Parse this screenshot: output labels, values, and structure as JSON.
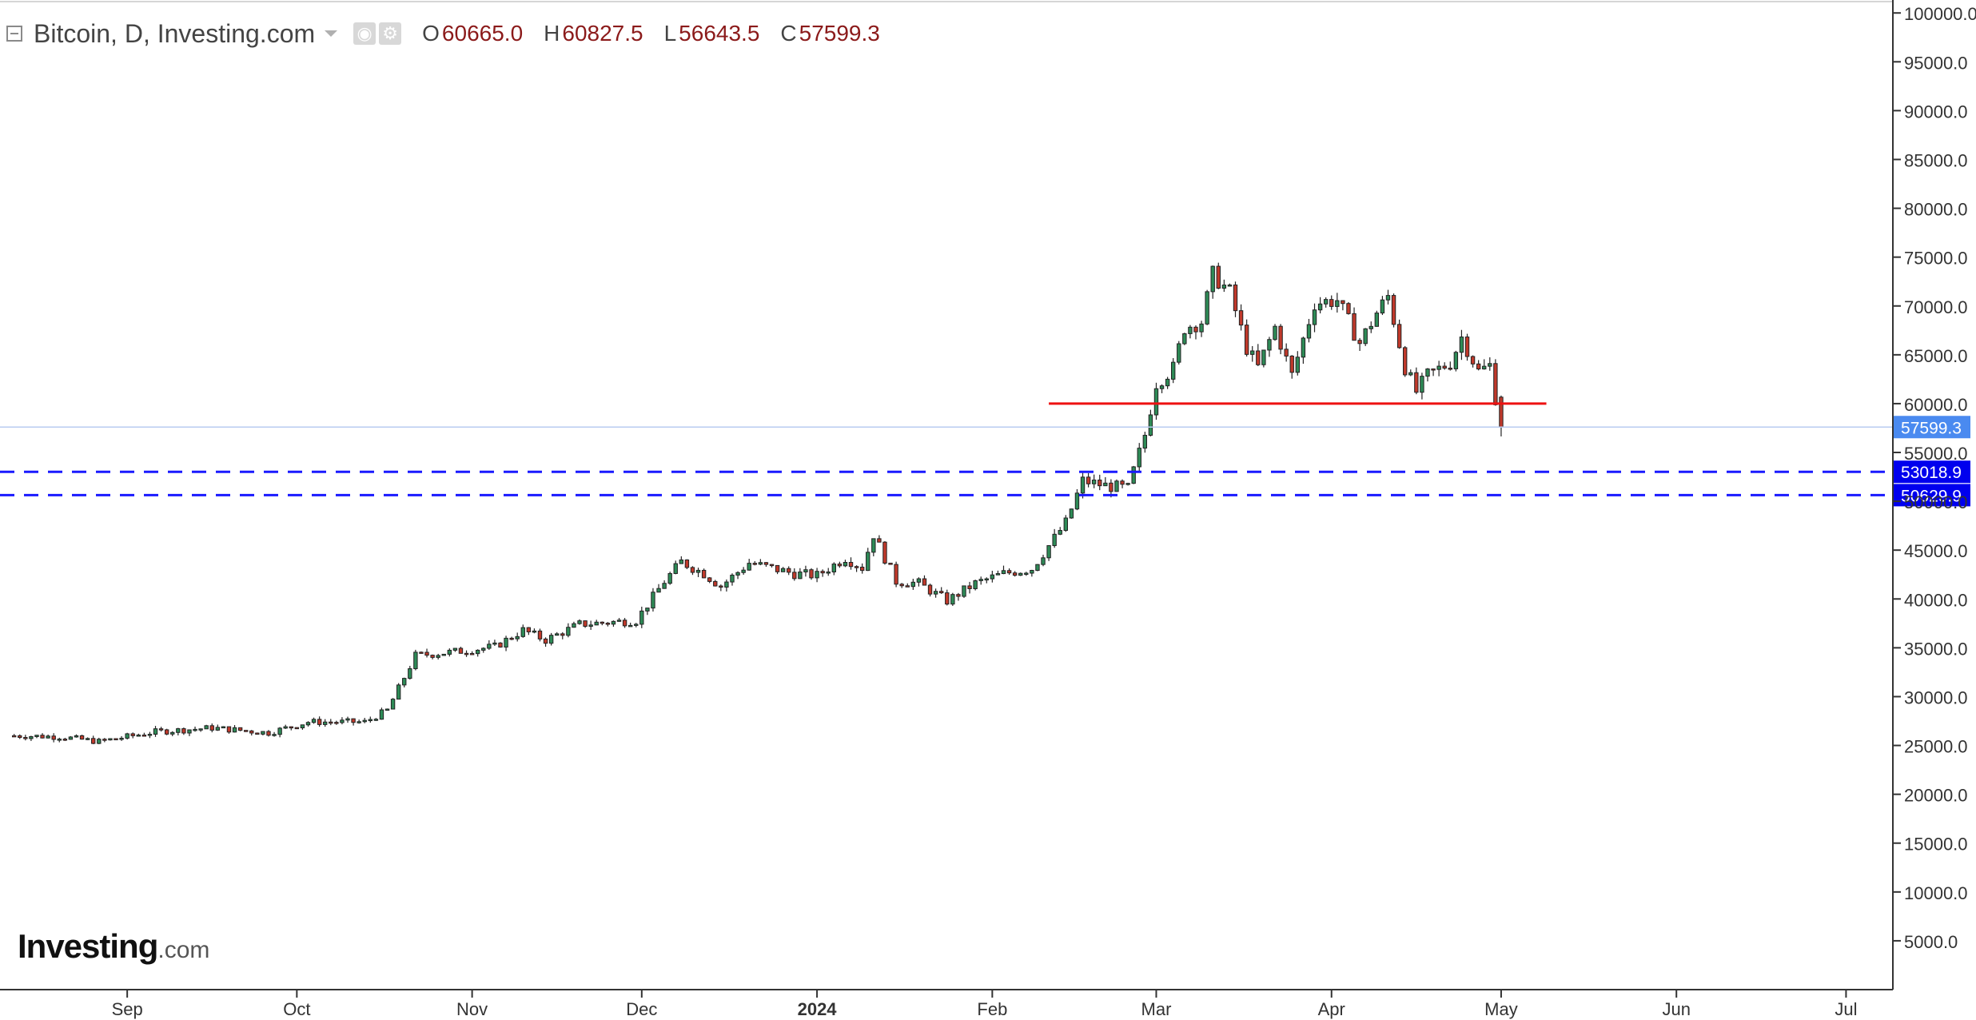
{
  "header": {
    "title": "Bitcoin, D, Investing.com",
    "open_label": "O",
    "open": "60665.0",
    "high_label": "H",
    "high": "60827.5",
    "low_label": "L",
    "low": "56643.5",
    "close_label": "C",
    "close": "57599.3"
  },
  "logo": {
    "main": "Investing",
    "suffix": ".com"
  },
  "colors": {
    "up": "#2e8b57",
    "down": "#c0392b",
    "support": "#1a1aff",
    "resistance": "#ee1111",
    "last_price": "#4a8af0",
    "axis": "#333333"
  },
  "chart_data": {
    "type": "candlestick",
    "title": "Bitcoin, D, Investing.com",
    "ylim": [
      0,
      101000
    ],
    "y_ticks": [
      "5000.0",
      "10000.0",
      "15000.0",
      "20000.0",
      "25000.0",
      "30000.0",
      "35000.0",
      "40000.0",
      "45000.0",
      "50000.0",
      "55000.0",
      "60000.0",
      "65000.0",
      "70000.0",
      "75000.0",
      "80000.0",
      "85000.0",
      "90000.0",
      "95000.0",
      "100000.0"
    ],
    "x_range_days": [
      -22.5,
      312
    ],
    "x_ticks": [
      {
        "label": "Sep",
        "day": 0
      },
      {
        "label": "Oct",
        "day": 30
      },
      {
        "label": "Nov",
        "day": 61
      },
      {
        "label": "Dec",
        "day": 91
      },
      {
        "label": "2024",
        "day": 122,
        "bold": true
      },
      {
        "label": "Feb",
        "day": 153
      },
      {
        "label": "Mar",
        "day": 182
      },
      {
        "label": "Apr",
        "day": 213
      },
      {
        "label": "May",
        "day": 243
      },
      {
        "label": "Jun",
        "day": 274
      },
      {
        "label": "Jul",
        "day": 304
      }
    ],
    "close_anchors": [
      [
        -20,
        26000
      ],
      [
        -12,
        25900
      ],
      [
        -5,
        25400
      ],
      [
        5,
        26400
      ],
      [
        15,
        26800
      ],
      [
        25,
        26300
      ],
      [
        32,
        27400
      ],
      [
        42,
        27400
      ],
      [
        46,
        28600
      ],
      [
        51,
        34200
      ],
      [
        58,
        34600
      ],
      [
        65,
        35100
      ],
      [
        70,
        36800
      ],
      [
        74,
        35800
      ],
      [
        80,
        37400
      ],
      [
        90,
        37800
      ],
      [
        95,
        41800
      ],
      [
        98,
        43800
      ],
      [
        102,
        42600
      ],
      [
        105,
        41300
      ],
      [
        110,
        43700
      ],
      [
        118,
        42600
      ],
      [
        122,
        42400
      ],
      [
        127,
        44200
      ],
      [
        130,
        43200
      ],
      [
        132,
        46600
      ],
      [
        136,
        41800
      ],
      [
        140,
        41600
      ],
      [
        145,
        39800
      ],
      [
        150,
        41600
      ],
      [
        155,
        42600
      ],
      [
        160,
        43100
      ],
      [
        166,
        47800
      ],
      [
        169,
        52100
      ],
      [
        173,
        51600
      ],
      [
        177,
        51300
      ],
      [
        180,
        56800
      ],
      [
        182,
        62100
      ],
      [
        185,
        63600
      ],
      [
        187,
        67800
      ],
      [
        190,
        68400
      ],
      [
        192,
        73200
      ],
      [
        195,
        71400
      ],
      [
        198,
        65700
      ],
      [
        200,
        63700
      ],
      [
        203,
        67800
      ],
      [
        206,
        62900
      ],
      [
        210,
        70300
      ],
      [
        214,
        70600
      ],
      [
        218,
        66200
      ],
      [
        221,
        69300
      ],
      [
        223,
        71000
      ],
      [
        226,
        63700
      ],
      [
        228,
        61200
      ],
      [
        230,
        62900
      ],
      [
        234,
        64200
      ],
      [
        236,
        66800
      ],
      [
        239,
        63300
      ],
      [
        241,
        63900
      ],
      [
        242,
        60600
      ],
      [
        243,
        57599
      ]
    ],
    "last_candle": {
      "open": 60665.0,
      "high": 60827.5,
      "low": 56643.5,
      "close": 57599.3
    },
    "resistance_line": {
      "value": 60000,
      "from_day": 163,
      "to_day": 251
    },
    "last_price_line": {
      "value": 57599.3,
      "label": "57599.3"
    },
    "support_lines": [
      {
        "value": 53018.9,
        "label": "53018.9"
      },
      {
        "value": 50629.9,
        "label": "50629.9"
      }
    ]
  }
}
